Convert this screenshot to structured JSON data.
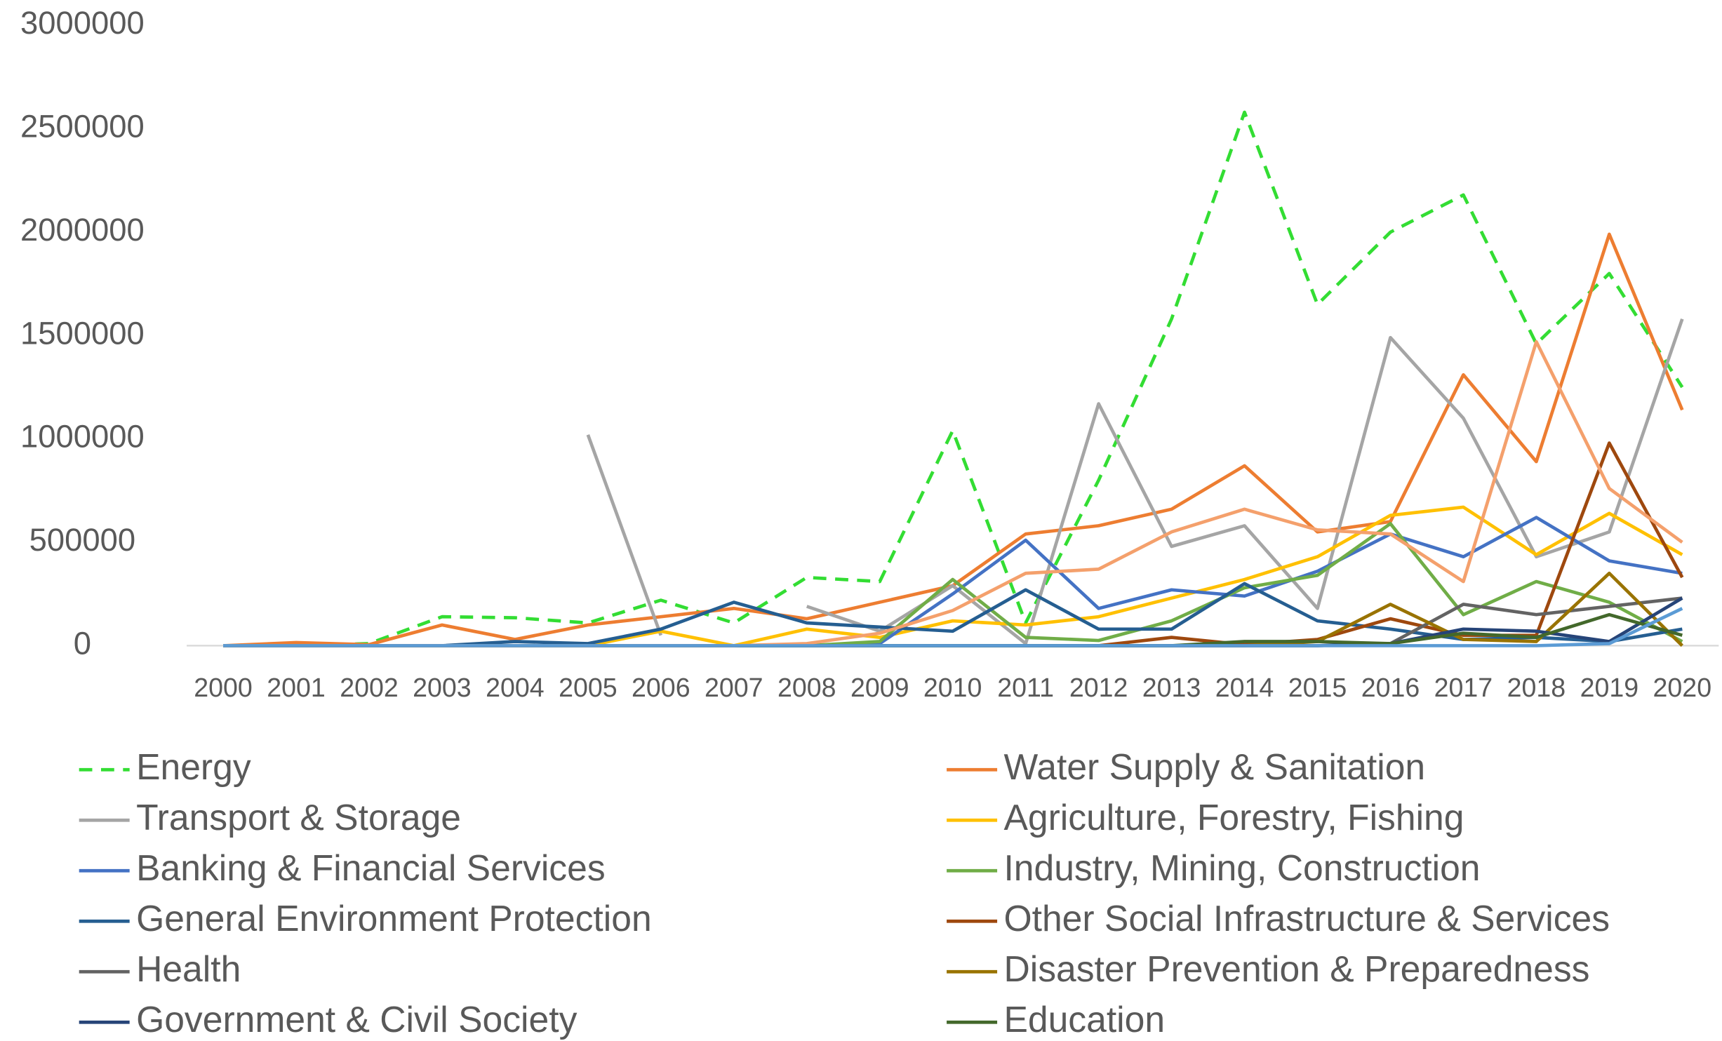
{
  "chart_data": {
    "type": "line",
    "categories": [
      "2000",
      "2001",
      "2002",
      "2003",
      "2004",
      "2005",
      "2006",
      "2007",
      "2008",
      "2009",
      "2010",
      "2011",
      "2012",
      "2013",
      "2014",
      "2015",
      "2016",
      "2017",
      "2018",
      "2019",
      "2020"
    ],
    "ylim": [
      0,
      3000000
    ],
    "yticks": [
      0,
      500000,
      1000000,
      1500000,
      2000000,
      2500000,
      3000000
    ],
    "grid": false,
    "series": [
      {
        "name": "Energy",
        "color": "#33dd33",
        "dashed": true,
        "values": [
          0,
          0,
          10000,
          140000,
          135000,
          110000,
          220000,
          110000,
          330000,
          310000,
          1040000,
          110000,
          800000,
          1580000,
          2580000,
          1650000,
          2000000,
          2180000,
          1460000,
          1800000,
          1250000
        ]
      },
      {
        "name": "Water Supply & Sanitation",
        "color": "#ed7d31",
        "values": [
          0,
          15000,
          5000,
          100000,
          30000,
          100000,
          140000,
          180000,
          130000,
          210000,
          290000,
          540000,
          580000,
          660000,
          870000,
          550000,
          600000,
          1310000,
          890000,
          1990000,
          1140000
        ]
      },
      {
        "name": "Transport & Storage",
        "color": "#a5a5a5",
        "values": [
          null,
          null,
          null,
          null,
          null,
          1020000,
          50000,
          null,
          190000,
          70000,
          290000,
          10000,
          1170000,
          480000,
          580000,
          180000,
          1490000,
          1100000,
          430000,
          550000,
          1580000
        ]
      },
      {
        "name": "Agriculture, Forestry, Fishing",
        "color": "#ffc000",
        "values": [
          0,
          0,
          0,
          0,
          0,
          0,
          70000,
          0,
          80000,
          40000,
          120000,
          100000,
          140000,
          230000,
          320000,
          430000,
          630000,
          670000,
          440000,
          640000,
          440000
        ]
      },
      {
        "name": "Banking & Financial Services",
        "color": "#4472c4",
        "values": [
          0,
          0,
          0,
          0,
          0,
          0,
          0,
          0,
          0,
          10000,
          250000,
          510000,
          180000,
          270000,
          240000,
          360000,
          540000,
          430000,
          620000,
          410000,
          350000
        ]
      },
      {
        "name": "Industry, Mining, Construction",
        "color": "#70ad47",
        "values": [
          0,
          0,
          0,
          0,
          0,
          0,
          0,
          0,
          0,
          20000,
          320000,
          40000,
          25000,
          120000,
          280000,
          340000,
          590000,
          150000,
          310000,
          210000,
          20000
        ]
      },
      {
        "name": "General Environment Protection",
        "color": "#255e91",
        "values": [
          0,
          0,
          0,
          0,
          20000,
          10000,
          80000,
          210000,
          110000,
          90000,
          70000,
          270000,
          80000,
          80000,
          300000,
          120000,
          80000,
          30000,
          40000,
          20000,
          80000
        ]
      },
      {
        "name": "Other Social Infrastructure & Services",
        "color": "#9e480e",
        "values": [
          0,
          0,
          0,
          0,
          0,
          0,
          0,
          0,
          0,
          0,
          0,
          0,
          0,
          40000,
          5000,
          30000,
          130000,
          50000,
          50000,
          980000,
          330000
        ]
      },
      {
        "name": "Health",
        "color": "#636363",
        "values": [
          0,
          0,
          0,
          0,
          0,
          0,
          0,
          0,
          0,
          0,
          0,
          0,
          0,
          0,
          0,
          0,
          10000,
          200000,
          150000,
          190000,
          230000
        ]
      },
      {
        "name": "Disaster Prevention & Preparedness",
        "color": "#997300",
        "values": [
          0,
          0,
          0,
          0,
          0,
          0,
          0,
          0,
          0,
          0,
          0,
          0,
          0,
          0,
          0,
          20000,
          200000,
          30000,
          20000,
          350000,
          0
        ]
      },
      {
        "name": "Government & Civil Society",
        "color": "#264478",
        "values": [
          0,
          0,
          0,
          0,
          0,
          0,
          0,
          0,
          0,
          0,
          0,
          0,
          0,
          0,
          0,
          0,
          10000,
          80000,
          70000,
          20000,
          230000
        ]
      },
      {
        "name": "Education",
        "color": "#43682b",
        "values": [
          0,
          0,
          0,
          0,
          0,
          0,
          0,
          0,
          0,
          0,
          0,
          0,
          0,
          0,
          20000,
          20000,
          10000,
          60000,
          40000,
          150000,
          50000
        ]
      },
      {
        "color": "#f4a06c",
        "values": [
          0,
          0,
          0,
          0,
          0,
          0,
          0,
          0,
          10000,
          60000,
          170000,
          350000,
          370000,
          550000,
          660000,
          560000,
          540000,
          310000,
          1470000,
          760000,
          500000
        ]
      },
      {
        "color": "#5b9bd5",
        "values": [
          0,
          0,
          0,
          0,
          0,
          0,
          0,
          0,
          0,
          0,
          0,
          0,
          0,
          0,
          0,
          0,
          0,
          0,
          0,
          10000,
          180000
        ]
      }
    ]
  }
}
